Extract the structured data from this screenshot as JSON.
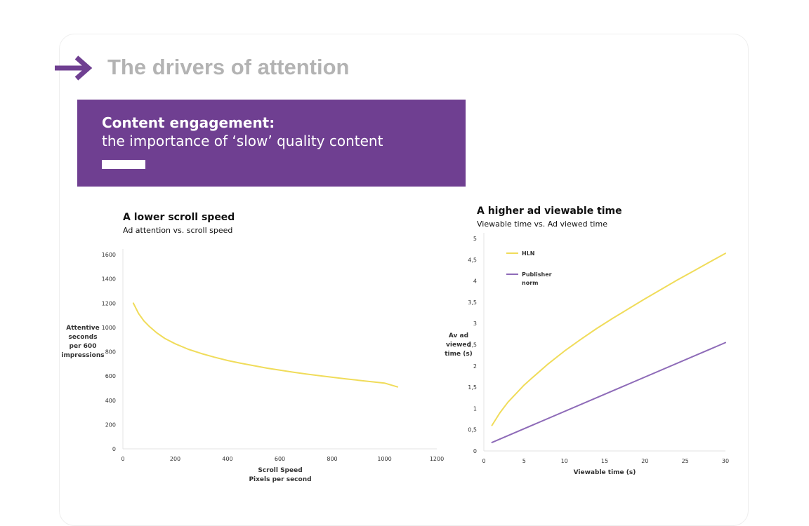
{
  "page": {
    "heading": "The drivers of attention",
    "accent_color": "#6f3f91",
    "arrow_icon": "right-arrow-icon"
  },
  "banner": {
    "title": "Content engagement:",
    "subtitle": "the importance of ‘slow’ quality content"
  },
  "chart_data": [
    {
      "type": "line",
      "title": "A lower scroll speed",
      "subtitle": "Ad attention vs. scroll speed",
      "xlabel": "Scroll Speed",
      "xlabel2": "Pixels per second",
      "ylabel": [
        "Attentive",
        "seconds",
        "per 600",
        "impressions"
      ],
      "xlim": [
        0,
        1200
      ],
      "ylim": [
        0,
        1600
      ],
      "xticks": [
        0,
        200,
        400,
        600,
        800,
        1000,
        1200
      ],
      "xtick_labels": [
        "0",
        "200",
        "400",
        "600",
        "800",
        "1000",
        "1200"
      ],
      "yticks": [
        0,
        200,
        400,
        600,
        800,
        1000,
        1200,
        1400,
        1600
      ],
      "ytick_labels": [
        "0",
        "200",
        "400",
        "600",
        "800",
        "1000",
        "1200",
        "1400",
        "1600"
      ],
      "grid": false,
      "legend": "none",
      "series": [
        {
          "color": "#f0dc5a",
          "x": [
            40,
            60,
            80,
            100,
            130,
            160,
            200,
            250,
            300,
            350,
            400,
            450,
            500,
            550,
            600,
            650,
            700,
            750,
            800,
            850,
            900,
            950,
            1000,
            1050
          ],
          "y": [
            1200,
            1115,
            1055,
            1010,
            955,
            910,
            865,
            820,
            785,
            755,
            728,
            705,
            685,
            665,
            648,
            632,
            617,
            603,
            590,
            577,
            565,
            553,
            542,
            510
          ]
        }
      ]
    },
    {
      "type": "line",
      "title": "A higher ad viewable time",
      "subtitle": "Viewable time vs. Ad viewed time",
      "xlabel": "Viewable time (s)",
      "ylabel": [
        "Av ad",
        "viewed",
        "time (s)"
      ],
      "xlim": [
        0,
        30
      ],
      "ylim": [
        0,
        5
      ],
      "xticks": [
        0,
        5,
        10,
        15,
        20,
        25,
        30
      ],
      "xtick_labels": [
        "0",
        "5",
        "10",
        "15",
        "20",
        "25",
        "30"
      ],
      "yticks": [
        0,
        0.5,
        1,
        1.5,
        2,
        2.5,
        3,
        3.5,
        4,
        4.5,
        5
      ],
      "ytick_labels": [
        "0",
        "0,5",
        "1",
        "1,5",
        "2",
        "2,5",
        "3",
        "3,5",
        "4",
        "4,5",
        "5"
      ],
      "grid": false,
      "legend": "top-left",
      "series": [
        {
          "name": "HLN",
          "color": "#f0dc5a",
          "x": [
            1,
            2,
            3,
            4,
            5,
            6,
            8,
            10,
            12,
            14,
            16,
            18,
            20,
            22,
            24,
            26,
            28,
            30
          ],
          "y": [
            0.6,
            0.9,
            1.15,
            1.35,
            1.55,
            1.72,
            2.05,
            2.35,
            2.62,
            2.88,
            3.12,
            3.35,
            3.58,
            3.8,
            4.02,
            4.23,
            4.44,
            4.65
          ]
        },
        {
          "name": "Publisher\nnorm",
          "color": "#8e6bb8",
          "x": [
            1,
            30
          ],
          "y": [
            0.2,
            2.55
          ]
        }
      ]
    }
  ]
}
